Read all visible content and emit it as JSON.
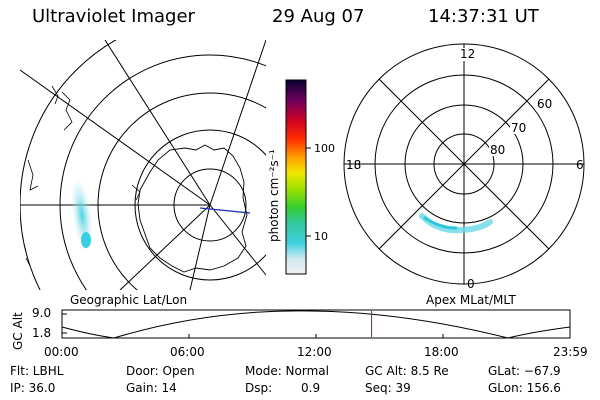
{
  "header": {
    "title": "Ultraviolet Imager",
    "date": "29 Aug 07",
    "time": "14:37:31 UT"
  },
  "colorbar": {
    "unit_label": "photon cm⁻²s⁻¹",
    "ticks": [
      "100",
      "10"
    ]
  },
  "polar_plot": {
    "mlt_labels": {
      "top": "12",
      "left": "18",
      "right": "6",
      "bottom": "0"
    },
    "lat_labels": [
      "60",
      "70",
      "80"
    ]
  },
  "panel_labels": {
    "left": "Geographic Lat/Lon",
    "right": "Apex MLat/MLT"
  },
  "altitude_strip": {
    "axis_label": "GC Alt",
    "y_ticks": [
      "9.0",
      "1.8"
    ],
    "x_ticks": [
      "00:00",
      "06:00",
      "12:00",
      "18:00",
      "23:59"
    ],
    "current_time_marker_hours": 14.625,
    "marker_color": "#cc0000"
  },
  "status": {
    "flt": "Flt: LBHL",
    "ip": "IP: 36.0",
    "door": "Door: Open",
    "gain": "Gain: 14",
    "mode": "Mode: Normal",
    "dsp": "Dsp:",
    "dsp_value": "0.9",
    "gc_alt": "GC Alt: 8.5 Re",
    "seq": "Seq: 39",
    "glat": "GLat: −67.9",
    "glon": "GLon: 156.6"
  }
}
